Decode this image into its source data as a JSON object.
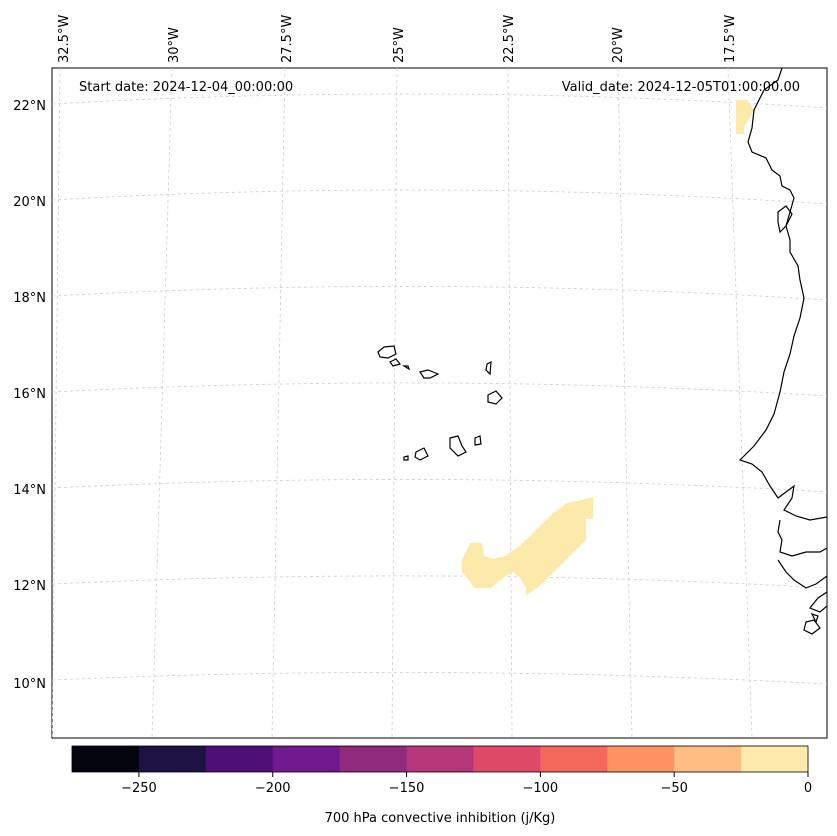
{
  "map": {
    "start_date_text": "Start date: 2024-12-04_00:00:00",
    "valid_date_text": "Valid_date: 2024-12-05T01:00:00.00",
    "lon_labels": [
      "32.5°W",
      "30°W",
      "27.5°W",
      "25°W",
      "22.5°W",
      "20°W",
      "17.5°W"
    ],
    "lat_labels": [
      "22°N",
      "20°N",
      "18°N",
      "16°N",
      "14°N",
      "12°N",
      "10°N"
    ],
    "extent": {
      "lon_min": -32.5,
      "lon_max": -16.0,
      "lat_min": 8.8,
      "lat_max": 22.8
    },
    "coastline_color": "#000000",
    "gridline_color": "#cccccc",
    "field_color": "#fde9a9"
  },
  "colorbar": {
    "label": "700 hPa convective inhibition (j/Kg)",
    "tick_labels": [
      "−250",
      "−200",
      "−150",
      "−100",
      "−50",
      "0"
    ],
    "range": [
      -275,
      0
    ],
    "colors": [
      "#05050f",
      "#1e1144",
      "#4d1176",
      "#71198e",
      "#902a7d",
      "#b7367a",
      "#de4968",
      "#f4685c",
      "#fe9262",
      "#febd82",
      "#fde9a9"
    ]
  }
}
